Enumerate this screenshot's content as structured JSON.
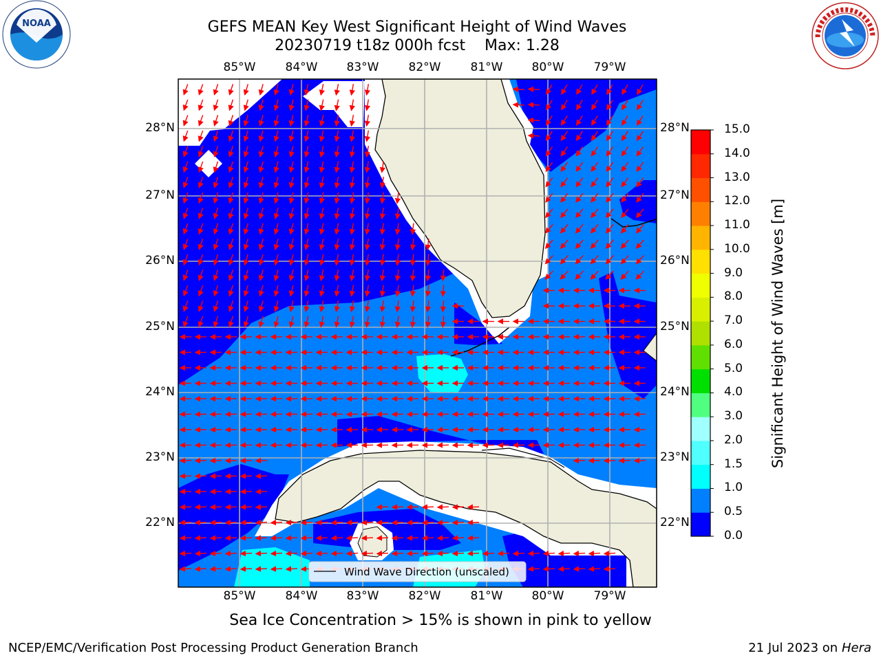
{
  "header": {
    "title_line1": "GEFS MEAN Key West Significant Height of Wind Waves",
    "title_line2": "20230719 t18z 000h fcst    Max: 1.28"
  },
  "logos": {
    "left": {
      "icon": "noaa-logo-icon",
      "text": "NOAA",
      "ring_text": "NATIONAL OCEANIC AND ATMOSPHERIC ADMINISTRATION · U.S. DEPARTMENT OF COMMERCE"
    },
    "right": {
      "icon": "nws-logo-icon",
      "ring_text": "NATIONAL WEATHER SERVICE"
    }
  },
  "map": {
    "lon_labels": [
      "85°W",
      "84°W",
      "83°W",
      "82°W",
      "81°W",
      "80°W",
      "79°W"
    ],
    "lat_labels": [
      "28°N",
      "27°N",
      "26°N",
      "25°N",
      "24°N",
      "23°N",
      "22°N"
    ],
    "legend_label": "Wind Wave Direction (unscaled)",
    "colors": {
      "land": "#efeedc",
      "ocean_0_05": "#0000ff",
      "ocean_05_10": "#0080ff",
      "ocean_10_15": "#00ffff",
      "arrow": "#ff0000",
      "grid": "#b0b0b0"
    }
  },
  "colorbar": {
    "label": "Significant Height of Wind Waves [m]",
    "ticks": [
      "0.0",
      "0.5",
      "1.0",
      "1.5",
      "2.0",
      "3.0",
      "4.0",
      "5.0",
      "6.0",
      "7.0",
      "8.0",
      "9.0",
      "10.0",
      "11.0",
      "12.0",
      "13.0",
      "14.0",
      "15.0"
    ],
    "colors": [
      "#0000ff",
      "#0080ff",
      "#00ffff",
      "#50ffff",
      "#a0ffff",
      "#50ff80",
      "#00e000",
      "#60e000",
      "#b0e000",
      "#d8f000",
      "#f0ff00",
      "#ffe000",
      "#ffb400",
      "#ff8000",
      "#ff5000",
      "#ff2800",
      "#ff0000"
    ]
  },
  "footer": {
    "subtitle": "Sea Ice Concentration > 15% is shown in pink to yellow",
    "left": "NCEP/EMC/Verification Post Processing Product Generation Branch",
    "right_prefix": "21 Jul 2023 on ",
    "right_host": "Hera"
  }
}
